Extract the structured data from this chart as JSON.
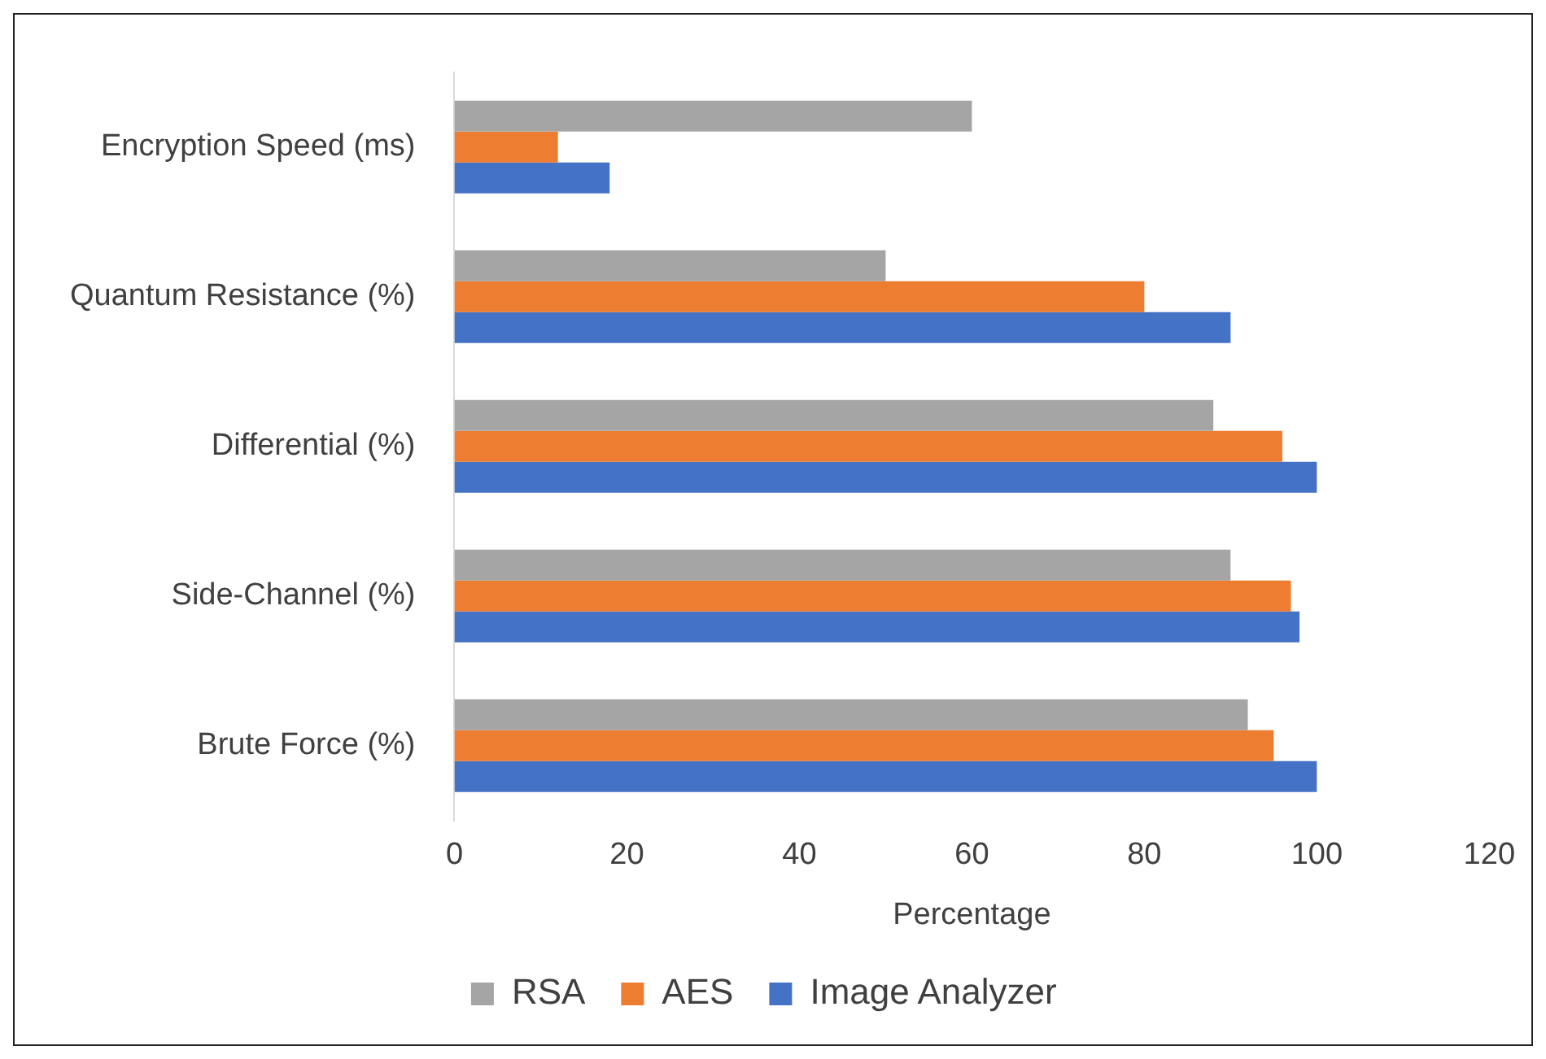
{
  "chart_data": {
    "type": "bar",
    "orientation": "horizontal",
    "xlabel": "Percentage",
    "categories": [
      "Encryption Speed (ms)",
      "Quantum Resistance (%)",
      "Differential (%)",
      "Side-Channel (%)",
      "Brute Force (%)"
    ],
    "series": [
      {
        "name": "RSA",
        "color": "#a5a5a5",
        "values": [
          60,
          50,
          88,
          90,
          92
        ]
      },
      {
        "name": "AES",
        "color": "#ed7d31",
        "values": [
          12,
          80,
          96,
          97,
          95
        ]
      },
      {
        "name": "Image Analyzer",
        "color": "#4472c4",
        "values": [
          18,
          90,
          100,
          98,
          100
        ]
      }
    ],
    "xlim": [
      0,
      120
    ],
    "xticks": [
      0,
      20,
      40,
      60,
      80,
      100,
      120
    ],
    "grid": false,
    "legend": "bottom"
  }
}
